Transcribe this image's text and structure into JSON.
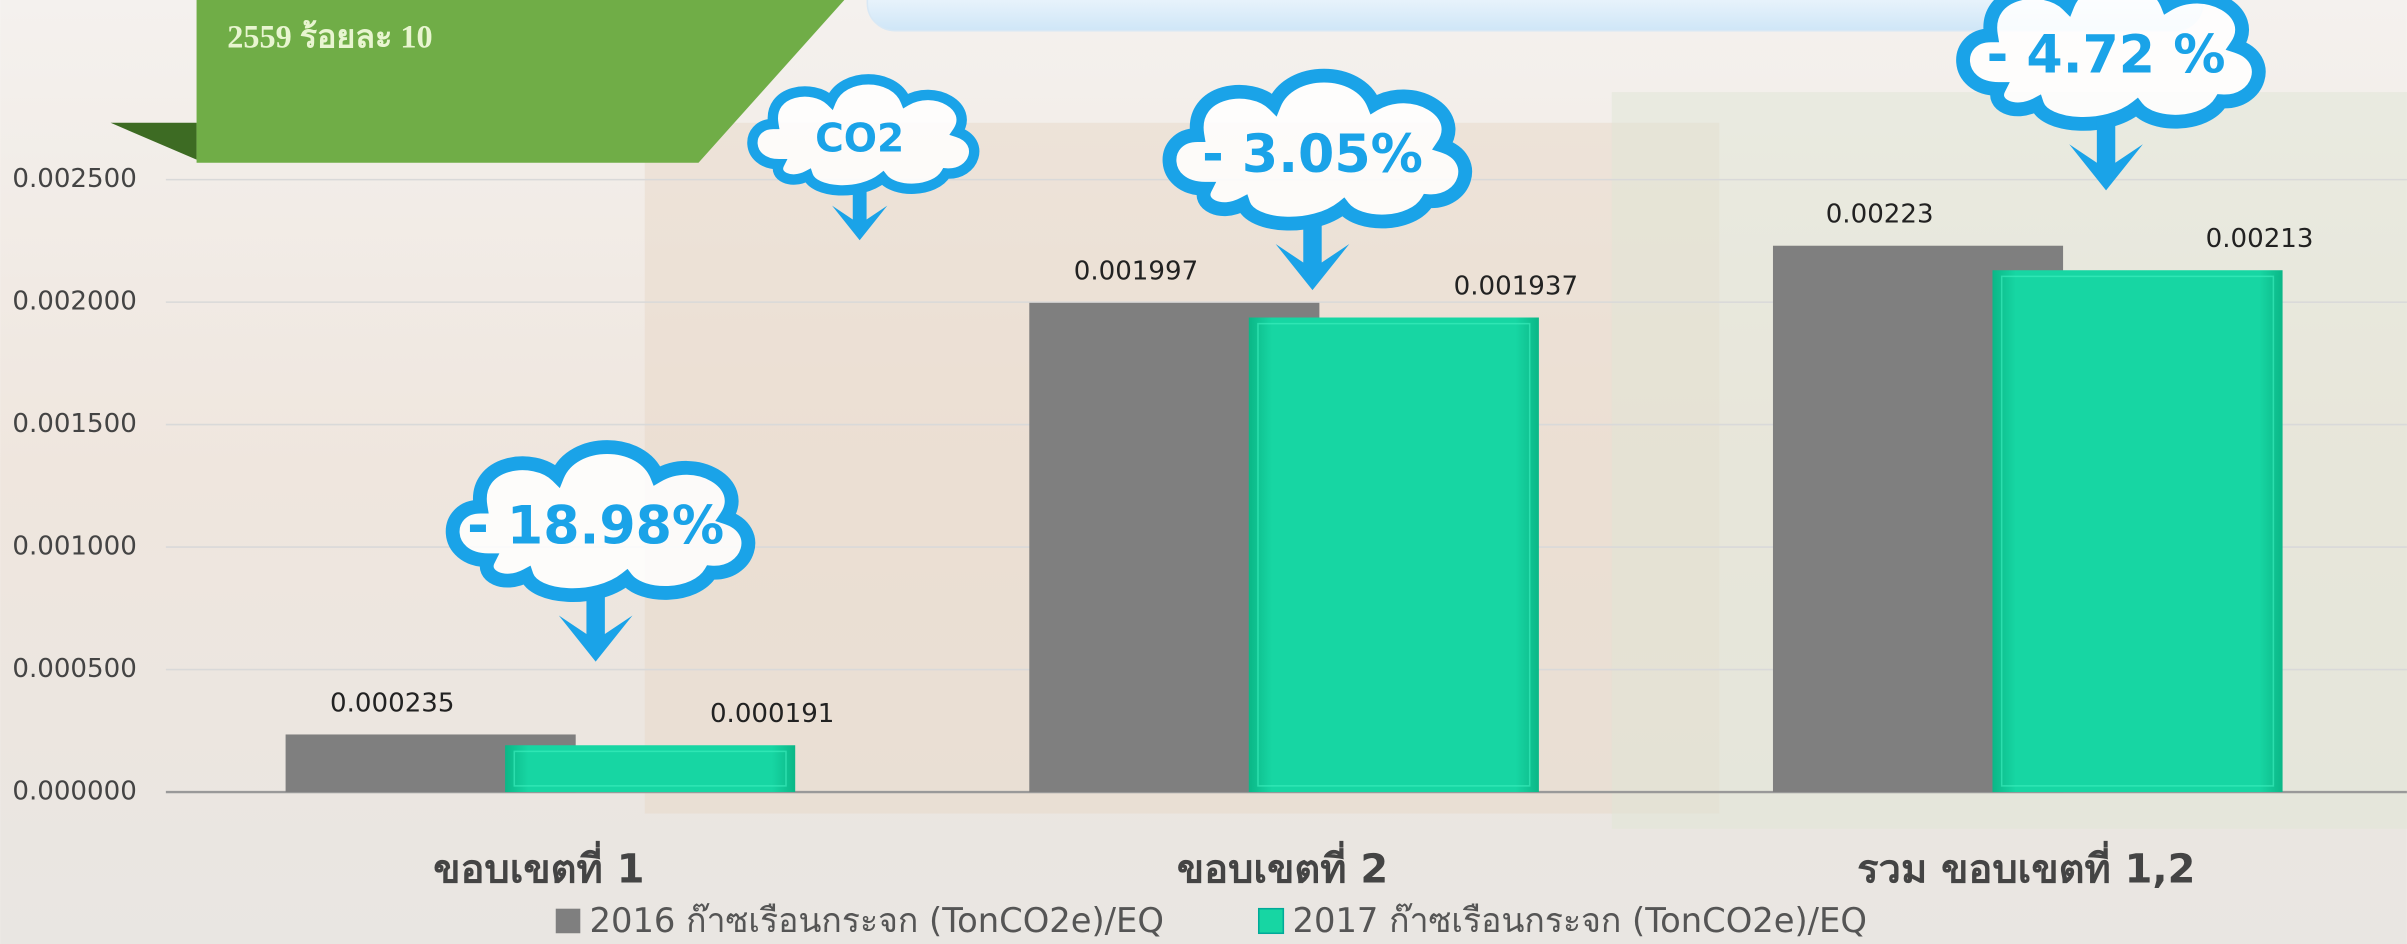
{
  "header_text": "2559 ร้อยละ 10",
  "chart_data": {
    "type": "bar",
    "categories": [
      "ขอบเขตที่  1",
      "ขอบเขตที่ 2",
      "รวม ขอบเขตที่ 1,2"
    ],
    "series": [
      {
        "name": "2016 ก๊าซเรือนกระจก (TonCO2e)/EQ",
        "color": "#7f7f7f",
        "values": [
          0.000235,
          0.001997,
          0.00223
        ]
      },
      {
        "name": "2017 ก๊าซเรือนกระจก (TonCO2e)/EQ",
        "color": "#17d6a3",
        "values": [
          0.000191,
          0.001937,
          0.00213
        ]
      }
    ],
    "ylim": [
      0,
      0.0025
    ],
    "yticks": [
      {
        "value": 0,
        "label": "0.000000"
      },
      {
        "value": 0.0005,
        "label": "0.000500"
      },
      {
        "value": 0.001,
        "label": "0.001000"
      },
      {
        "value": 0.0015,
        "label": "0.001500"
      },
      {
        "value": 0.002,
        "label": "0.002000"
      },
      {
        "value": 0.0025,
        "label": "0.002500"
      }
    ],
    "grid": true,
    "legend": "bottom",
    "annotations": [
      "CO2",
      "- 18.98%",
      "- 3.05%",
      "- 4.72 %"
    ]
  }
}
